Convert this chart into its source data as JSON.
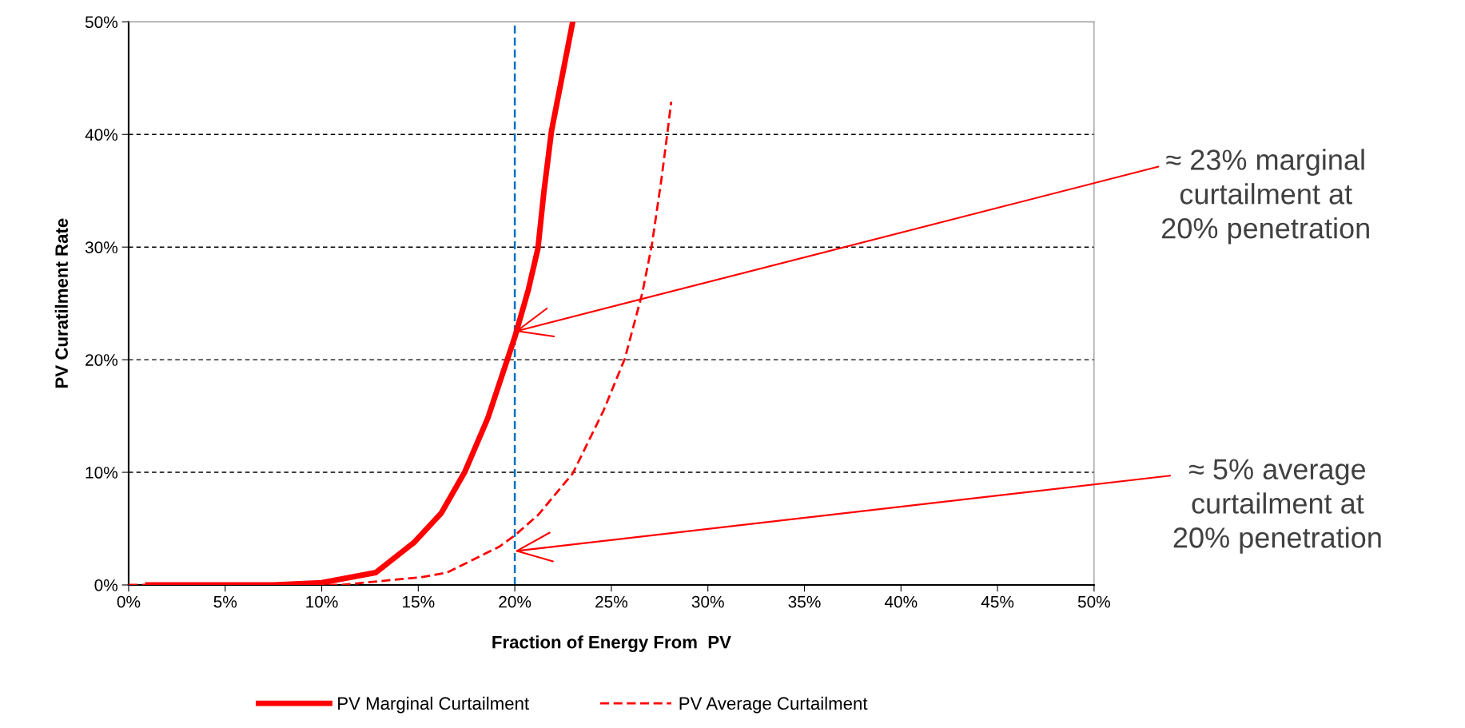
{
  "chart_data": {
    "type": "line",
    "xlabel": "Fraction of Energy From  PV",
    "ylabel": "PV Curatilment Rate",
    "series": [
      {
        "name": "PV Marginal Curtailment",
        "color": "#ff0000",
        "line_style": "solid",
        "x": [
          1,
          5,
          7.5,
          10,
          12.8,
          14.8,
          16.2,
          17.4,
          18.6,
          20,
          20.7,
          21.2,
          21.5,
          21.9,
          22.4,
          23
        ],
        "values": [
          0,
          0,
          0,
          0.2,
          1.1,
          3.8,
          6.4,
          10,
          14.8,
          22,
          26.2,
          29.9,
          34.8,
          40.3,
          44.7,
          50
        ]
      },
      {
        "name": "PV Average Curtailment",
        "color": "#ff0000",
        "line_style": "dashed",
        "x": [
          0,
          11,
          15.2,
          16.5,
          17.2,
          19.2,
          20,
          21.2,
          23,
          24.6,
          25.7,
          26.6,
          27.1,
          27.6,
          27.9,
          28.1
        ],
        "values": [
          0,
          0,
          0.7,
          1.1,
          1.7,
          3.4,
          4.4,
          6.2,
          9.9,
          15.5,
          20.1,
          25.9,
          30.2,
          36.1,
          40.1,
          42.9
        ]
      }
    ],
    "xlim": [
      0,
      50
    ],
    "ylim": [
      0,
      50
    ],
    "xticks": [
      {
        "value": 0,
        "label": "0%"
      },
      {
        "value": 5,
        "label": "5%"
      },
      {
        "value": 10,
        "label": "10%"
      },
      {
        "value": 15,
        "label": "15%"
      },
      {
        "value": 20,
        "label": "20%"
      },
      {
        "value": 25,
        "label": "25%"
      },
      {
        "value": 30,
        "label": "30%"
      },
      {
        "value": 35,
        "label": "35%"
      },
      {
        "value": 40,
        "label": "40%"
      },
      {
        "value": 45,
        "label": "45%"
      },
      {
        "value": 50,
        "label": "50%"
      }
    ],
    "yticks": [
      {
        "value": 0,
        "label": "0%"
      },
      {
        "value": 10,
        "label": "10%"
      },
      {
        "value": 20,
        "label": "20%"
      },
      {
        "value": 30,
        "label": "30%"
      },
      {
        "value": 40,
        "label": "40%"
      },
      {
        "value": 50,
        "label": "50%"
      }
    ],
    "grid": "y",
    "legend": "bottom",
    "marker": "none",
    "ref_lines": [
      {
        "axis": "x",
        "value": 20,
        "color": "#0070c0",
        "line_style": "dashed"
      }
    ],
    "annotations": [
      {
        "text": "≈ 23% marginal\ncurtailment at\n20% penetration",
        "x": 20,
        "y": 22.5
      },
      {
        "text": "≈ 5% average\ncurtailment at\n20% penetration",
        "x": 20,
        "y": 3
      }
    ]
  }
}
